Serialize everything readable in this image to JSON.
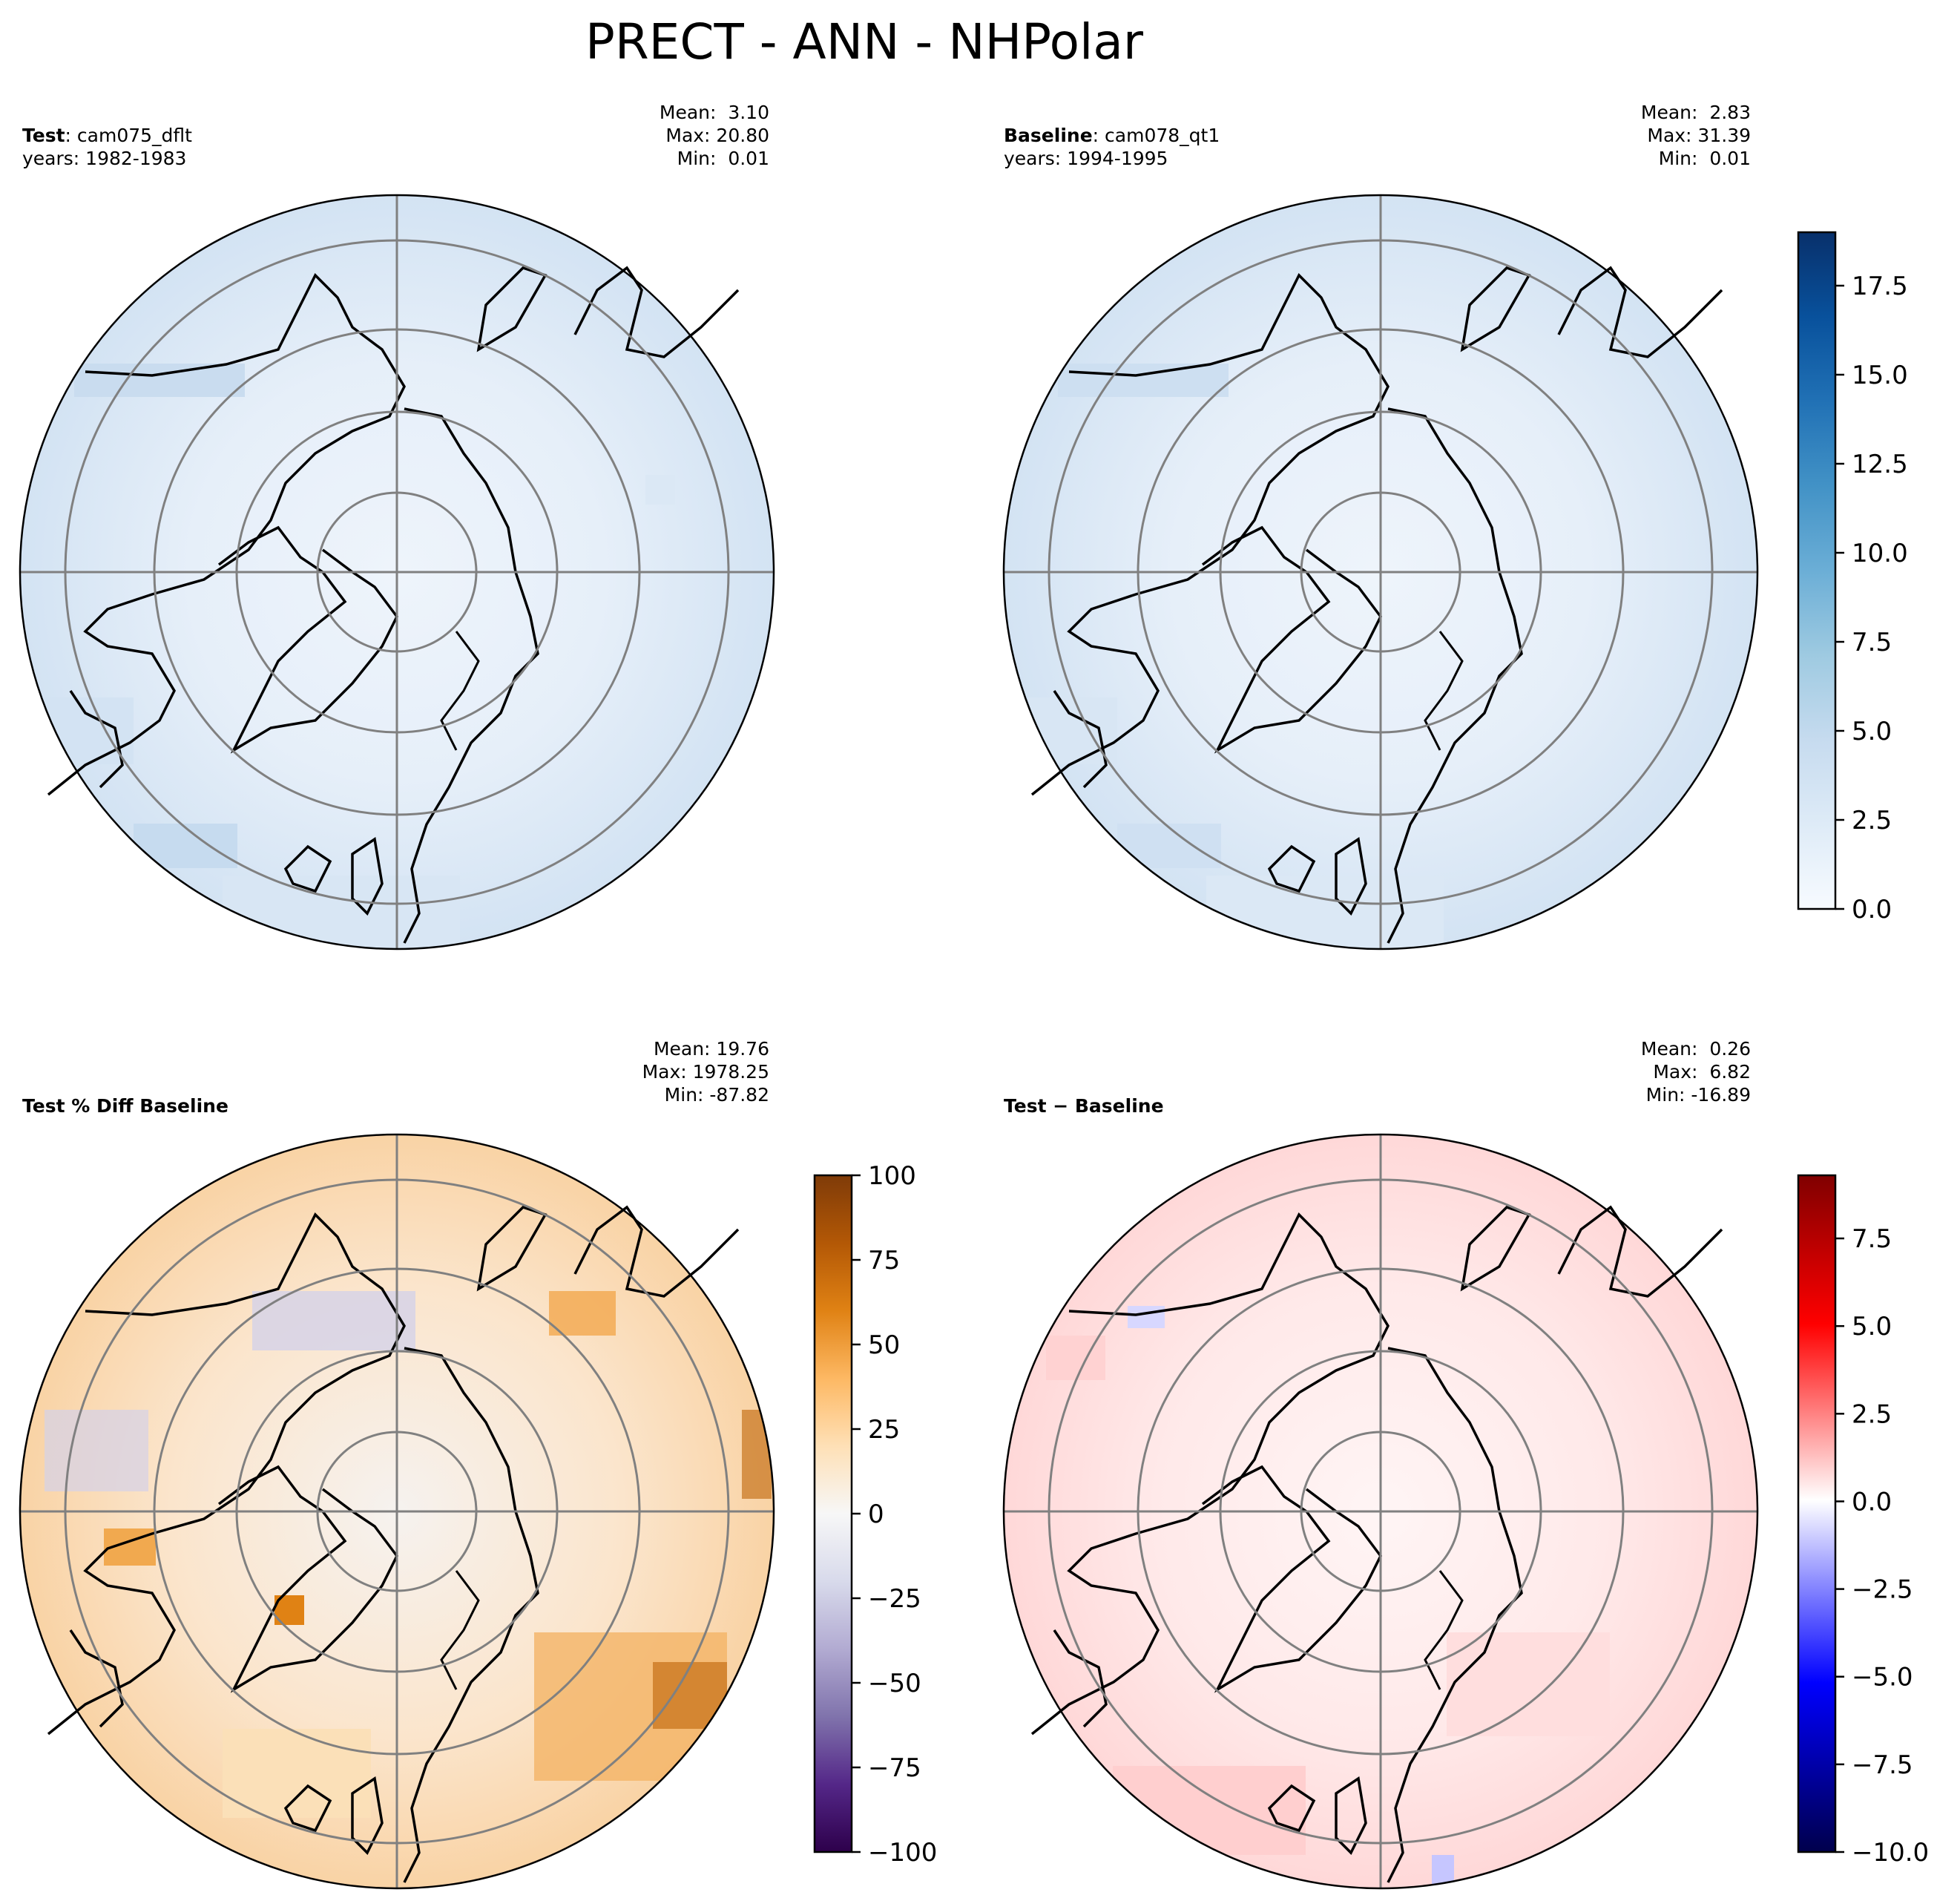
{
  "suptitle": "PRECT - ANN - NHPolar",
  "panels": [
    {
      "id": "test",
      "label_bold": "Test",
      "label_sep": ": ",
      "label_rest": "cam075_dflt",
      "years": "years: 1982-1983",
      "stats": {
        "mean": "Mean:  3.10",
        "max": "Max: 20.80",
        "min": "Min:  0.01"
      }
    },
    {
      "id": "baseline",
      "label_bold": "Baseline",
      "label_sep": ": ",
      "label_rest": "cam078_qt1",
      "years": "years: 1994-1995",
      "stats": {
        "mean": "Mean:  2.83",
        "max": "Max: 31.39",
        "min": "Min:  0.01"
      }
    },
    {
      "id": "pctdiff",
      "label_bold": "Test % Diff Baseline",
      "label_sep": "",
      "label_rest": "",
      "years": "",
      "stats": {
        "mean": "Mean: 19.76",
        "max": "Max: 1978.25",
        "min": "Min: -87.82"
      }
    },
    {
      "id": "diff",
      "label_bold": "Test − Baseline",
      "label_sep": "",
      "label_rest": "",
      "years": "",
      "stats": {
        "mean": "Mean:  0.26",
        "max": "Max:  6.82",
        "min": "Min: -16.89"
      }
    }
  ],
  "chart_data": [
    {
      "type": "heatmap",
      "title": "Test: cam075_dflt",
      "projection": "north-polar-stereographic",
      "variable": "PRECT",
      "colormap": "Blues",
      "clim": [
        0,
        19
      ],
      "shared_colorbar_with": "Baseline",
      "mean": 3.1,
      "max": 20.8,
      "min": 0.01
    },
    {
      "type": "heatmap",
      "title": "Baseline: cam078_qt1",
      "projection": "north-polar-stereographic",
      "variable": "PRECT",
      "colormap": "Blues",
      "clim": [
        0,
        19
      ],
      "colorbar_ticks": [
        "0.0",
        "2.5",
        "5.0",
        "7.5",
        "10.0",
        "12.5",
        "15.0",
        "17.5"
      ],
      "mean": 2.83,
      "max": 31.39,
      "min": 0.01
    },
    {
      "type": "heatmap",
      "title": "Test % Diff Baseline",
      "projection": "north-polar-stereographic",
      "colormap": "PuOr_r",
      "clim": [
        -100,
        100
      ],
      "colorbar_ticks": [
        "−100",
        "−75",
        "−50",
        "−25",
        "0",
        "25",
        "50",
        "75",
        "100"
      ],
      "mean": 19.76,
      "max": 1978.25,
      "min": -87.82
    },
    {
      "type": "heatmap",
      "title": "Test − Baseline",
      "projection": "north-polar-stereographic",
      "colormap": "seismic",
      "clim": [
        -10,
        9.3
      ],
      "colorbar_ticks": [
        "−10.0",
        "−7.5",
        "−5.0",
        "−2.5",
        "0.0",
        "2.5",
        "5.0",
        "7.5"
      ],
      "mean": 0.26,
      "max": 6.82,
      "min": -16.89
    }
  ],
  "colors": {
    "grid": "#808080",
    "coast": "#000000",
    "blue_low": "#f7fbff",
    "blue_high": "#08306b",
    "orange_high": "#7f3b08",
    "purple_low": "#2d004b",
    "red_high": "#800000",
    "blue_dark": "#000080"
  }
}
